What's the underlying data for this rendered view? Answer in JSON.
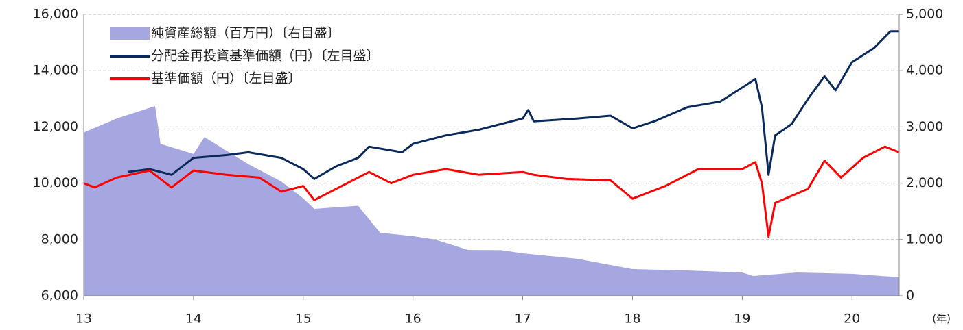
{
  "chart_data": {
    "type": "line",
    "x_unit_label": "(年)",
    "series": [
      {
        "name": "純資産総額（百万円）〔右目盛〕",
        "kind": "area",
        "axis": "y2",
        "color": "#a6a6e0",
        "x": [
          13.0,
          13.3,
          13.65,
          13.7,
          14.0,
          14.1,
          14.5,
          14.8,
          15.0,
          15.1,
          15.5,
          15.7,
          16.0,
          16.2,
          16.5,
          16.8,
          17.0,
          17.5,
          18.0,
          18.5,
          19.0,
          19.1,
          19.5,
          20.0,
          20.43
        ],
        "values": [
          2900,
          3150,
          3370,
          2700,
          2520,
          2820,
          2340,
          2030,
          1730,
          1545,
          1600,
          1120,
          1060,
          1000,
          815,
          810,
          755,
          657,
          475,
          450,
          414,
          353,
          414,
          390,
          330
        ]
      },
      {
        "name": "分配金再投資基準価額（円）〔左目盛〕",
        "kind": "line",
        "color": "#0b2a5c",
        "x": [
          13.4,
          13.6,
          13.8,
          14.0,
          14.3,
          14.5,
          14.8,
          15.0,
          15.1,
          15.3,
          15.5,
          15.6,
          15.9,
          16.0,
          16.3,
          16.6,
          17.0,
          17.05,
          17.1,
          17.5,
          17.8,
          18.0,
          18.2,
          18.5,
          18.8,
          19.0,
          19.12,
          19.18,
          19.24,
          19.3,
          19.45,
          19.6,
          19.75,
          19.85,
          20.0,
          20.2,
          20.35,
          20.43
        ],
        "values": [
          10400,
          10500,
          10300,
          10900,
          11000,
          11100,
          10900,
          10500,
          10150,
          10600,
          10900,
          11300,
          11100,
          11400,
          11700,
          11900,
          12300,
          12600,
          12200,
          12300,
          12400,
          11950,
          12200,
          12700,
          12900,
          13400,
          13700,
          12700,
          10300,
          11700,
          12100,
          13000,
          13800,
          13300,
          14300,
          14800,
          15400,
          15400
        ]
      },
      {
        "name": "基準価額（円）〔左目盛〕",
        "kind": "line",
        "color": "#ff0000",
        "x": [
          13.0,
          13.1,
          13.3,
          13.6,
          13.8,
          14.0,
          14.3,
          14.6,
          14.8,
          15.0,
          15.1,
          15.3,
          15.6,
          15.8,
          16.0,
          16.3,
          16.6,
          17.0,
          17.1,
          17.4,
          17.8,
          18.0,
          18.1,
          18.3,
          18.6,
          19.0,
          19.12,
          19.18,
          19.24,
          19.3,
          19.6,
          19.75,
          19.9,
          20.1,
          20.3,
          20.43
        ],
        "values": [
          10000,
          9850,
          10200,
          10450,
          9850,
          10450,
          10300,
          10200,
          9700,
          9900,
          9400,
          9800,
          10400,
          10000,
          10300,
          10500,
          10300,
          10400,
          10300,
          10150,
          10100,
          9450,
          9600,
          9900,
          10500,
          10500,
          10750,
          10000,
          8100,
          9300,
          9800,
          10800,
          10200,
          10900,
          11300,
          11100
        ]
      }
    ],
    "xlim": [
      13,
      20.43
    ],
    "xticks": [
      13,
      14,
      15,
      16,
      17,
      18,
      19,
      20
    ],
    "ylim": [
      6000,
      16000
    ],
    "yticks": [
      {
        "value": 6000,
        "label": "6,000"
      },
      {
        "value": 8000,
        "label": "8,000"
      },
      {
        "value": 10000,
        "label": "10,000"
      },
      {
        "value": 12000,
        "label": "12,000"
      },
      {
        "value": 14000,
        "label": "14,000"
      },
      {
        "value": 16000,
        "label": "16,000"
      }
    ],
    "y2lim": [
      0,
      5000
    ],
    "y2ticks": [
      0,
      {
        "value": 1000,
        "label": "1,000"
      },
      {
        "value": 2000,
        "label": "2,000"
      },
      {
        "value": 3000,
        "label": "3,000"
      },
      {
        "value": 4000,
        "label": "4,000"
      },
      {
        "value": 5000,
        "label": "5,000"
      }
    ],
    "grid": true
  }
}
